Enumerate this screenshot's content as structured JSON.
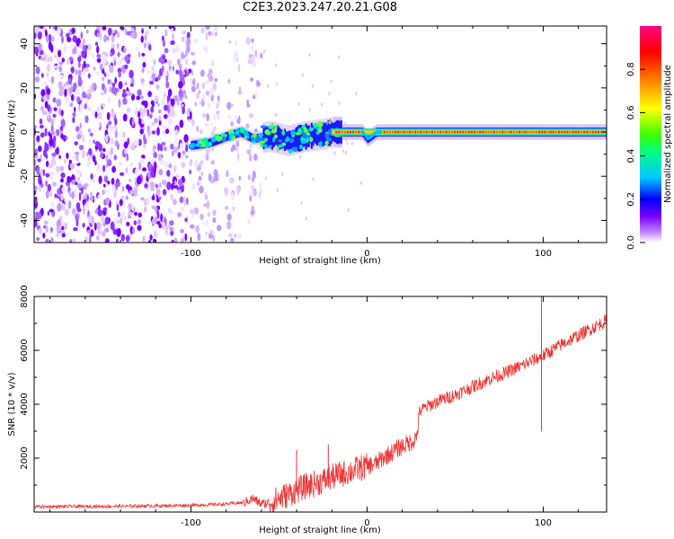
{
  "title": "C2E3.2023.247.20.21.G08",
  "chart_data": [
    {
      "type": "heatmap",
      "xlabel": "Height of straight line (km)",
      "ylabel": "Frequency (Hz)",
      "xlim": [
        -189,
        136
      ],
      "ylim": [
        -50,
        48
      ],
      "xticks": [
        -100,
        0,
        100
      ],
      "yticks": [
        -40,
        -20,
        0,
        20,
        40
      ],
      "colorbar": {
        "label": "Normalized spectral amplitude",
        "range": [
          0,
          1
        ],
        "ticks": [
          "0.0",
          "0.2",
          "0.4",
          "0.6",
          "0.8"
        ],
        "colors": [
          "#ffffff",
          "#c080ff",
          "#7a00ff",
          "#0000ff",
          "#00c8ff",
          "#00ff80",
          "#40ff00",
          "#ffff00",
          "#ff8000",
          "#ff0000",
          "#ff0080"
        ]
      },
      "features": {
        "noise_region_x": [
          -189,
          -60
        ],
        "signal_track": [
          [
            -100,
            -6
          ],
          [
            -90,
            -5
          ],
          [
            -80,
            -2
          ],
          [
            -72,
            0
          ],
          [
            -65,
            -3
          ],
          [
            -55,
            -2
          ],
          [
            -45,
            -4
          ],
          [
            -35,
            -2
          ],
          [
            -25,
            -1
          ],
          [
            -20,
            0
          ],
          [
            -10,
            0
          ],
          [
            -3,
            0
          ],
          [
            0,
            -3
          ],
          [
            5,
            0
          ],
          [
            10,
            0
          ],
          [
            50,
            0
          ],
          [
            95,
            0
          ],
          [
            100,
            0
          ],
          [
            136,
            0
          ]
        ]
      }
    },
    {
      "type": "line",
      "xlabel": "Height of straight line (km)",
      "ylabel": "SNR (10 * v/v)",
      "xlim": [
        -189,
        136
      ],
      "ylim": [
        0,
        8000
      ],
      "xticks": [
        -100,
        0,
        100
      ],
      "yticks": [
        2000,
        4000,
        6000,
        8000
      ],
      "series": [
        {
          "color": "#ee3333",
          "points": [
            [
              -189,
              200
            ],
            [
              -150,
              210
            ],
            [
              -120,
              230
            ],
            [
              -100,
              250
            ],
            [
              -90,
              270
            ],
            [
              -80,
              300
            ],
            [
              -70,
              350
            ],
            [
              -65,
              500
            ],
            [
              -60,
              300
            ],
            [
              -55,
              350
            ],
            [
              -50,
              500
            ],
            [
              -45,
              650
            ],
            [
              -40,
              800
            ],
            [
              -35,
              950
            ],
            [
              -30,
              1050
            ],
            [
              -25,
              1150
            ],
            [
              -20,
              1300
            ],
            [
              -15,
              1400
            ],
            [
              -10,
              1500
            ],
            [
              -5,
              1600
            ],
            [
              0,
              1700
            ],
            [
              5,
              1800
            ],
            [
              10,
              2050
            ],
            [
              15,
              2250
            ],
            [
              20,
              2450
            ],
            [
              25,
              2600
            ],
            [
              28,
              2750
            ],
            [
              30,
              3750
            ],
            [
              35,
              3950
            ],
            [
              40,
              4100
            ],
            [
              50,
              4350
            ],
            [
              60,
              4650
            ],
            [
              70,
              4950
            ],
            [
              80,
              5200
            ],
            [
              90,
              5500
            ],
            [
              100,
              5800
            ],
            [
              110,
              6200
            ],
            [
              120,
              6550
            ],
            [
              130,
              6900
            ],
            [
              136,
              7100
            ]
          ],
          "spikes": [
            [
              -40,
              2300
            ],
            [
              -22,
              2500
            ],
            [
              28,
              2900
            ],
            [
              99,
              8100
            ],
            [
              99,
              3000
            ]
          ]
        }
      ]
    }
  ]
}
